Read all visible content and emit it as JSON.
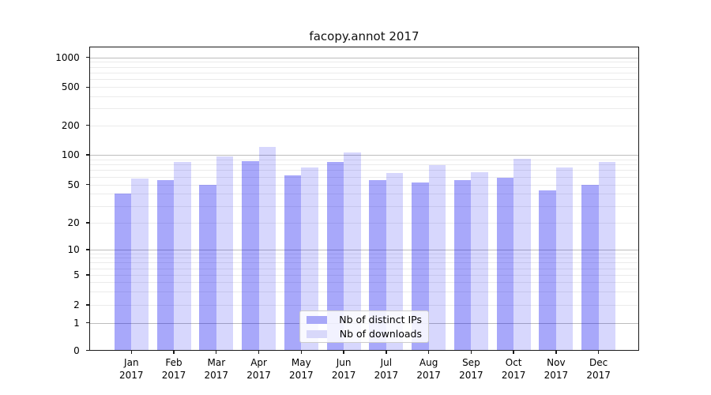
{
  "title": "facopy.annot 2017",
  "chart_data": {
    "type": "bar",
    "title": "facopy.annot 2017",
    "yscale": "symlog",
    "grid": "both",
    "legend_position": "lower center",
    "ylim": [
      0,
      1300
    ],
    "yticks": [
      0,
      1,
      2,
      5,
      10,
      20,
      50,
      100,
      200,
      500,
      1000
    ],
    "major_grid_values": [
      1,
      10,
      100,
      1000
    ],
    "categories": [
      "Jan",
      "Feb",
      "Mar",
      "Apr",
      "May",
      "Jun",
      "Jul",
      "Aug",
      "Sep",
      "Oct",
      "Nov",
      "Dec"
    ],
    "category_year": "2017",
    "series": [
      {
        "name": "Nb of distinct IPs",
        "swatch_color": "#a8a8f8",
        "fill": "rgba(0,0,240,0.34)",
        "values": [
          40,
          55,
          50,
          87,
          62,
          85,
          55,
          52,
          55,
          58,
          43,
          50
        ]
      },
      {
        "name": "Nb of downloads",
        "swatch_color": "#d8d8fa",
        "fill": "rgba(0,0,240,0.155)",
        "values": [
          57,
          84,
          96,
          120,
          74,
          105,
          65,
          78,
          66,
          92,
          75,
          84
        ]
      }
    ]
  },
  "colors": {
    "major_grid": "#bdbdbd",
    "minor_grid": "#ebebeb",
    "axis": "#1a1a1a",
    "background": "#ffffff"
  }
}
